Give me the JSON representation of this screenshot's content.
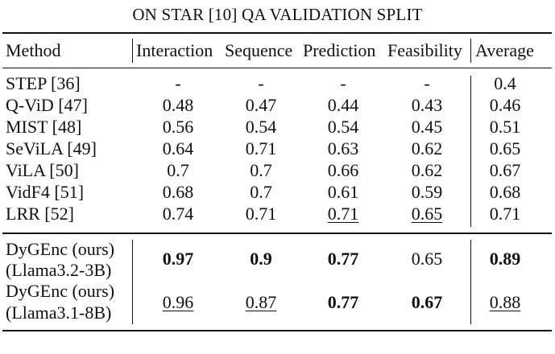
{
  "caption": "ON STAR [10] QA VALIDATION SPLIT",
  "headers": {
    "method": "Method",
    "interaction": "Interaction",
    "sequence": "Sequence",
    "prediction": "Prediction",
    "feasibility": "Feasibility",
    "average": "Average"
  },
  "rows": [
    {
      "method": "STEP [36]",
      "interaction": "-",
      "sequence": "-",
      "prediction": "-",
      "feasibility": "-",
      "average": "0.4"
    },
    {
      "method": "Q-ViD [47]",
      "interaction": "0.48",
      "sequence": "0.47",
      "prediction": "0.44",
      "feasibility": "0.43",
      "average": "0.46"
    },
    {
      "method": "MIST [48]",
      "interaction": "0.56",
      "sequence": "0.54",
      "prediction": "0.54",
      "feasibility": "0.45",
      "average": "0.51"
    },
    {
      "method": "SeViLA [49]",
      "interaction": "0.64",
      "sequence": "0.71",
      "prediction": "0.63",
      "feasibility": "0.62",
      "average": "0.65"
    },
    {
      "method": "ViLA [50]",
      "interaction": "0.7",
      "sequence": "0.7",
      "prediction": "0.66",
      "feasibility": "0.62",
      "average": "0.67"
    },
    {
      "method": "VidF4 [51]",
      "interaction": "0.68",
      "sequence": "0.7",
      "prediction": "0.61",
      "feasibility": "0.59",
      "average": "0.68"
    },
    {
      "method": "LRR [52]",
      "interaction": "0.74",
      "sequence": "0.71",
      "prediction": "0.71",
      "feasibility": "0.65",
      "average": "0.71"
    }
  ],
  "ours": [
    {
      "method_line1": "DyGEnc (ours)",
      "method_line2": "(Llama3.2-3B)",
      "interaction": "0.97",
      "sequence": "0.9",
      "prediction": "0.77",
      "feasibility": "0.65",
      "average": "0.89"
    },
    {
      "method_line1": "DyGEnc (ours)",
      "method_line2": "(Llama3.1-8B)",
      "interaction": "0.96",
      "sequence": "0.87",
      "prediction": "0.77",
      "feasibility": "0.67",
      "average": "0.88"
    }
  ]
}
